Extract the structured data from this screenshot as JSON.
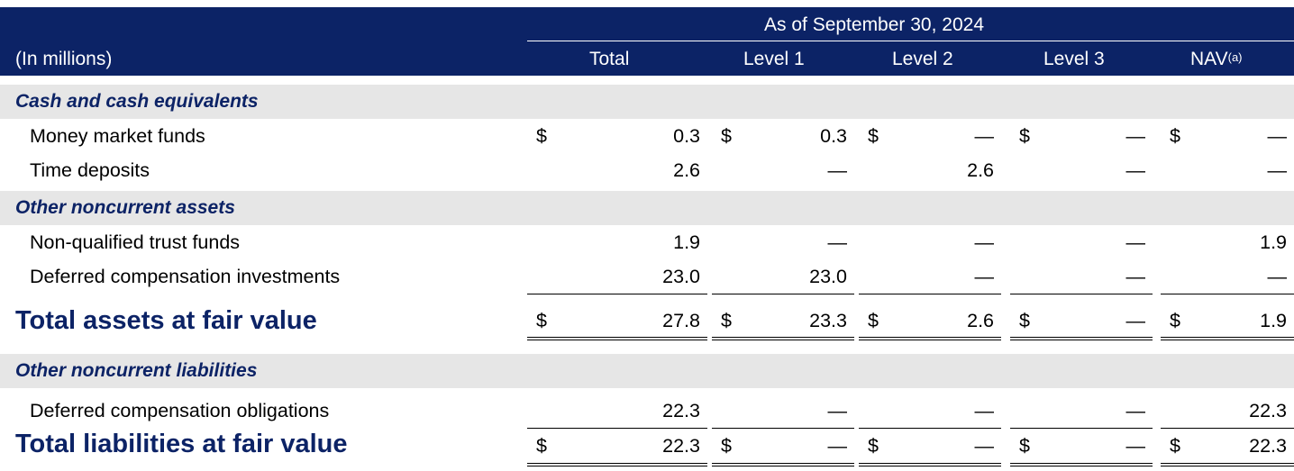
{
  "header": {
    "as_of": "As of September 30, 2024",
    "units_label": "(In millions)",
    "columns": [
      {
        "label": "Total"
      },
      {
        "label": "Level 1"
      },
      {
        "label": "Level 2"
      },
      {
        "label": "Level 3"
      },
      {
        "label": "NAV",
        "superscript": "(a)"
      }
    ]
  },
  "sections": {
    "cash": "Cash and cash equivalents",
    "other_assets": "Other noncurrent assets",
    "other_liabilities": "Other noncurrent liabilities"
  },
  "rows": {
    "money_market": {
      "label": "Money market funds",
      "dollars": [
        "$",
        "$",
        "$",
        "$",
        "$"
      ],
      "values": [
        "0.3",
        "0.3",
        "—",
        "—",
        "—"
      ]
    },
    "time_deposits": {
      "label": "Time deposits",
      "values": [
        "2.6",
        "—",
        "2.6",
        "—",
        "—"
      ]
    },
    "nonqualified": {
      "label": "Non-qualified trust funds",
      "values": [
        "1.9",
        "—",
        "—",
        "—",
        "1.9"
      ]
    },
    "deferred_inv": {
      "label": "Deferred compensation investments",
      "values": [
        "23.0",
        "23.0",
        "—",
        "—",
        "—"
      ]
    },
    "total_assets": {
      "label": "Total assets at fair value",
      "dollars": [
        "$",
        "$",
        "$",
        "$",
        "$"
      ],
      "values": [
        "27.8",
        "23.3",
        "2.6",
        "—",
        "1.9"
      ]
    },
    "deferred_obl": {
      "label": "Deferred compensation obligations",
      "values": [
        "22.3",
        "—",
        "—",
        "—",
        "22.3"
      ]
    },
    "total_liabilities": {
      "label": "Total liabilities at fair value",
      "dollars": [
        "$",
        "$",
        "$",
        "$",
        "$"
      ],
      "values": [
        "22.3",
        "—",
        "—",
        "—",
        "22.3"
      ]
    }
  },
  "colors": {
    "header_background": "#0c2366",
    "section_text": "#0c2366",
    "section_band": "#e6e6e6"
  }
}
